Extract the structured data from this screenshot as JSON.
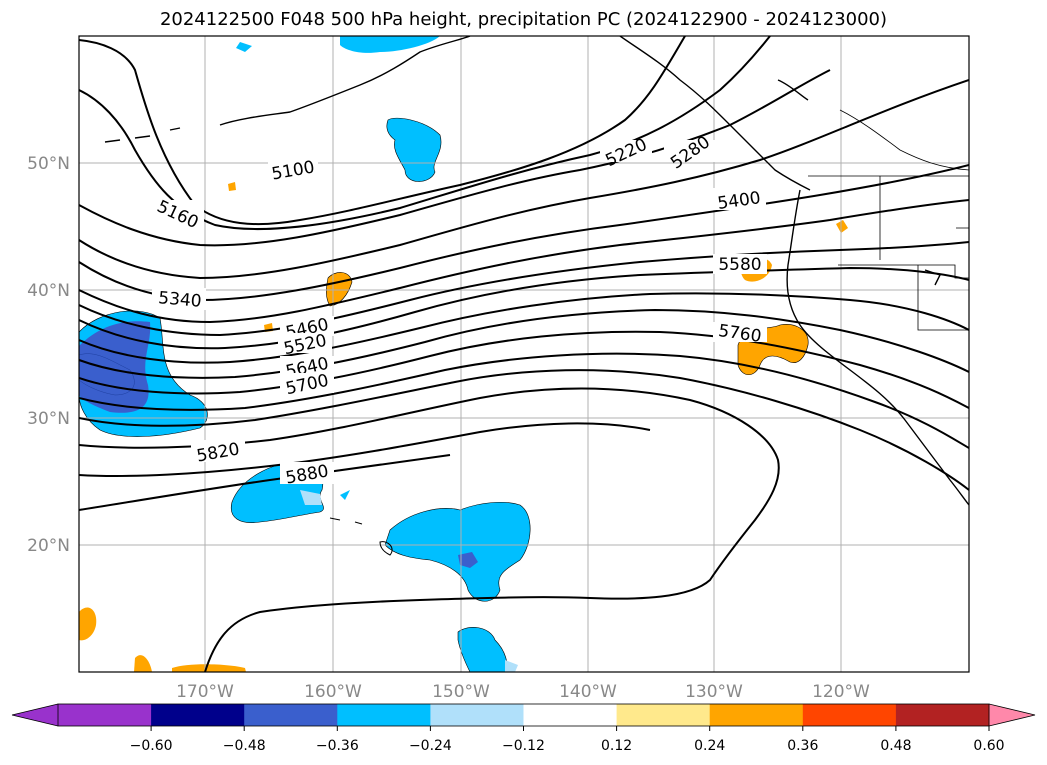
{
  "title": "2024122500 F048 500 hPa height, precipitation PC (2024122900 - 2024123000)",
  "latitude_labels": [
    "50°N",
    "40°N",
    "30°N",
    "20°N"
  ],
  "longitude_labels": [
    "170°W",
    "160°W",
    "150°W",
    "140°W",
    "130°W",
    "120°W"
  ],
  "contour_labels": [
    "5100",
    "5160",
    "5220",
    "5280",
    "5340",
    "5400",
    "5460",
    "5520",
    "5580",
    "5640",
    "5700",
    "5760",
    "5820",
    "5880"
  ],
  "colorbar": {
    "ticks": [
      "−0.60",
      "−0.48",
      "−0.36",
      "−0.24",
      "−0.12",
      "0.12",
      "0.24",
      "0.36",
      "0.48",
      "0.60"
    ],
    "colors": [
      "#9932cc",
      "#00008b",
      "#3a5fcd",
      "#00bfff",
      "#b0e0fa",
      "#ffffff",
      "#ffe98c",
      "#ffa500",
      "#ff4500",
      "#b22222",
      "#ff88aa"
    ]
  }
}
